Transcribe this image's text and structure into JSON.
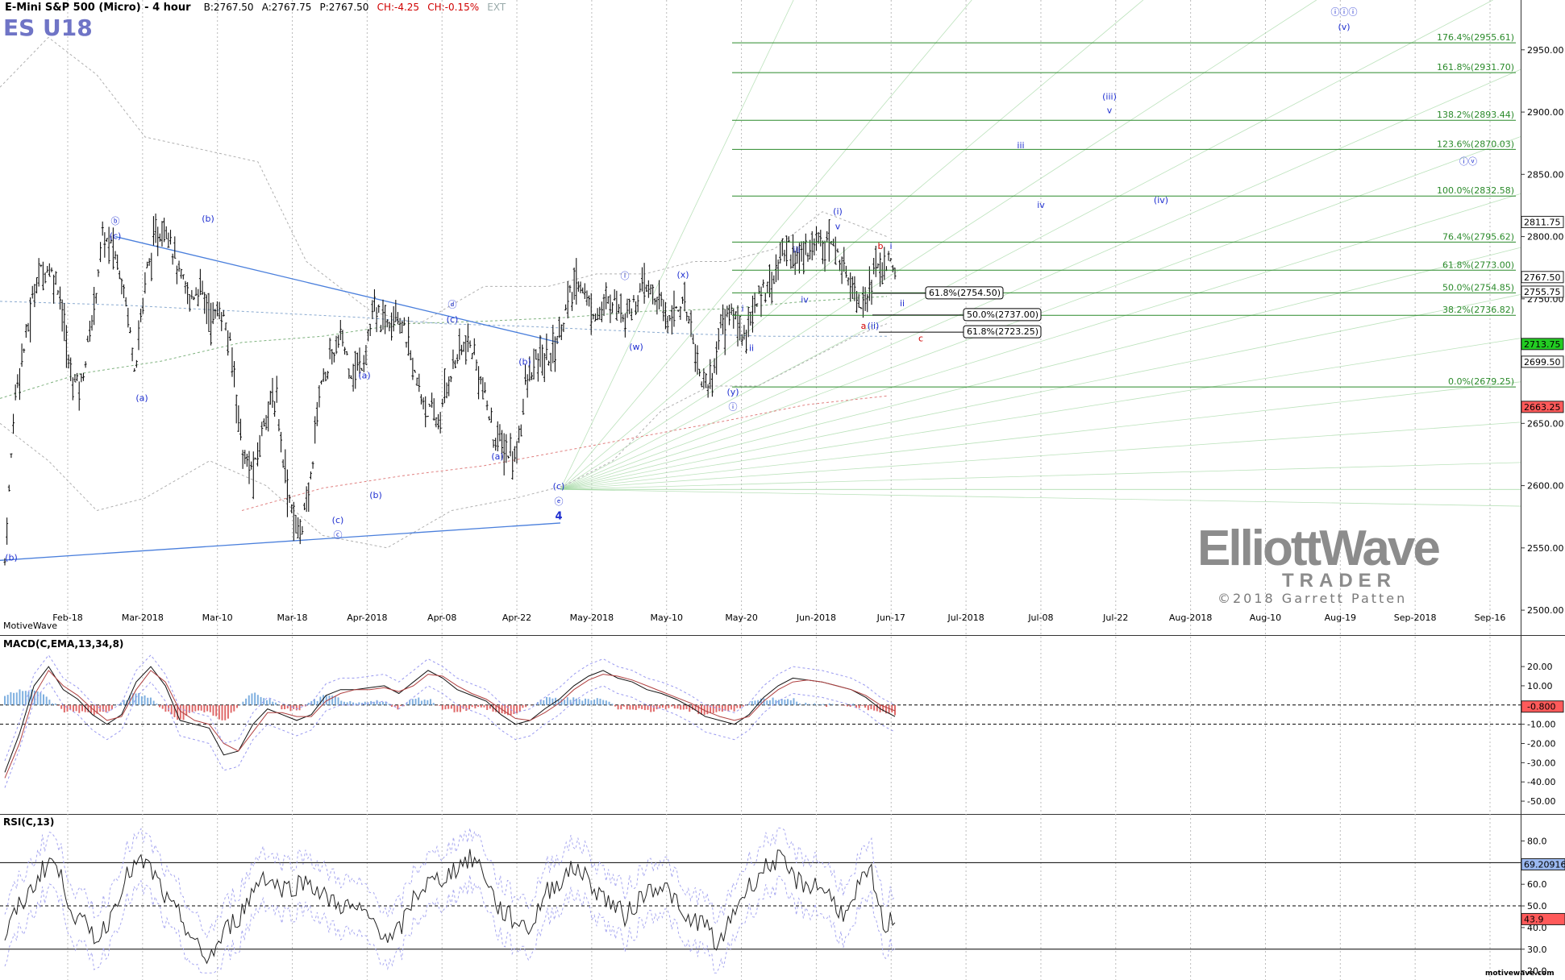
{
  "header": {
    "symbol": "E-Mini S&P 500 (Micro) - 4 hour",
    "bid": "B:2767.50",
    "ask": "A:2767.75",
    "price": "P:2767.50",
    "change": "CH:-4.25",
    "change_pct": "CH:-0.15%",
    "ext": "EXT",
    "ticker": "ES U18"
  },
  "watermark": "MotiveWave",
  "footer_brand": "motivewave.com",
  "logo": {
    "line1": "ElliottWave",
    "line2": "TRADER",
    "copyright": "©2018 Garrett Patten"
  },
  "colors": {
    "up": "#1f7a1f",
    "fib": "#2a8a2a",
    "wave": "#1f2fd0",
    "trend": "#4a7fdc",
    "bar": "#111111",
    "alt": "#d00000"
  },
  "chart_data": [
    {
      "type": "candlestick",
      "pane": "price",
      "ylim": [
        2480,
        2990
      ],
      "yticks": [
        "2950.00",
        "2900.00",
        "2850.00",
        "2800.00",
        "2750.00",
        "2700.00",
        "2650.00",
        "2600.00",
        "2550.00",
        "2500.00"
      ],
      "xticks": [
        "Feb-18",
        "Mar-2018",
        "Mar-10",
        "Mar-18",
        "Apr-2018",
        "Apr-08",
        "Apr-22",
        "May-2018",
        "May-10",
        "May-20",
        "Jun-2018",
        "Jun-17",
        "Jul-2018",
        "Jul-08",
        "Jul-22",
        "Aug-2018",
        "Aug-10",
        "Aug-19",
        "Sep-2018",
        "Sep-16"
      ],
      "price_tags": [
        {
          "label": "2811.75",
          "value": 2811.75,
          "kind": "outline"
        },
        {
          "label": "2767.50",
          "value": 2767.5,
          "kind": "outline"
        },
        {
          "label": "2755.75",
          "value": 2755.75,
          "kind": "outline"
        },
        {
          "label": "2713.75",
          "value": 2713.75,
          "kind": "green"
        },
        {
          "label": "2699.50",
          "value": 2699.5,
          "kind": "outline"
        },
        {
          "label": "2663.25",
          "value": 2663.25,
          "kind": "red"
        }
      ],
      "fib_levels": [
        {
          "label": "176.4%(2955.61)",
          "value": 2955.61
        },
        {
          "label": "161.8%(2931.70)",
          "value": 2931.7
        },
        {
          "label": "138.2%(2893.44)",
          "value": 2893.44
        },
        {
          "label": "123.6%(2870.03)",
          "value": 2870.03
        },
        {
          "label": "100.0%(2832.58)",
          "value": 2832.58
        },
        {
          "label": "76.4%(2795.62)",
          "value": 2795.62
        },
        {
          "label": "61.8%(2773.00)",
          "value": 2773.0
        },
        {
          "label": "50.0%(2754.85)",
          "value": 2754.85
        },
        {
          "label": "38.2%(2736.82)",
          "value": 2736.82
        },
        {
          "label": "0.0%(2679.25)",
          "value": 2679.25
        }
      ],
      "retrace_boxes": [
        {
          "label": "61.8%(2754.50)",
          "value": 2754.5
        },
        {
          "label": "50.0%(2737.00)",
          "value": 2737.0
        },
        {
          "label": "61.8%(2723.25)",
          "value": 2723.25
        }
      ],
      "close_path": [
        2540,
        2680,
        2720,
        2770,
        2775,
        2760,
        2690,
        2680,
        2730,
        2800,
        2790,
        2760,
        2695,
        2770,
        2800,
        2810,
        2770,
        2750,
        2760,
        2735,
        2740,
        2700,
        2620,
        2610,
        2660,
        2670,
        2600,
        2560,
        2590,
        2680,
        2700,
        2720,
        2690,
        2700,
        2740,
        2730,
        2745,
        2718,
        2680,
        2660,
        2650,
        2690,
        2710,
        2710,
        2680,
        2640,
        2630,
        2620,
        2680,
        2700,
        2700,
        2720,
        2750,
        2765,
        2740,
        2740,
        2750,
        2740,
        2745,
        2760,
        2750,
        2735,
        2745,
        2740,
        2690,
        2680,
        2730,
        2740,
        2720,
        2740,
        2760,
        2770,
        2795,
        2780,
        2790,
        2800,
        2796,
        2780,
        2765,
        2745,
        2770,
        2780,
        2770
      ],
      "wave_labels": [
        {
          "t": "(b)",
          "x": 14,
          "y": 2540,
          "c": "b"
        },
        {
          "t": "ⓑ",
          "x": 143,
          "y": 2810,
          "c": "b"
        },
        {
          "t": "(c)",
          "x": 143,
          "y": 2798,
          "c": "b"
        },
        {
          "t": "(a)",
          "x": 176,
          "y": 2668,
          "c": "b"
        },
        {
          "t": "(b)",
          "x": 258,
          "y": 2812,
          "c": "b"
        },
        {
          "t": "(a)",
          "x": 452,
          "y": 2686,
          "c": "b"
        },
        {
          "t": "(b)",
          "x": 466,
          "y": 2590,
          "c": "b"
        },
        {
          "t": "(c)",
          "x": 419,
          "y": 2570,
          "c": "b"
        },
        {
          "t": "ⓒ",
          "x": 419,
          "y": 2558,
          "c": "b"
        },
        {
          "t": "ⓓ",
          "x": 561,
          "y": 2743,
          "c": "b"
        },
        {
          "t": "(c)",
          "x": 561,
          "y": 2731,
          "c": "b"
        },
        {
          "t": "(a)",
          "x": 617,
          "y": 2621,
          "c": "b"
        },
        {
          "t": "(b)",
          "x": 651,
          "y": 2697,
          "c": "b"
        },
        {
          "t": "(c)",
          "x": 693,
          "y": 2597,
          "c": "b"
        },
        {
          "t": "ⓔ",
          "x": 693,
          "y": 2585,
          "c": "b"
        },
        {
          "t": "4",
          "x": 693,
          "y": 2573,
          "c": "b",
          "bold": true
        },
        {
          "t": "ⓘ",
          "x": 775,
          "y": 2766,
          "c": "b"
        },
        {
          "t": "(w)",
          "x": 789,
          "y": 2709,
          "c": "b"
        },
        {
          "t": "(x)",
          "x": 847,
          "y": 2767,
          "c": "b"
        },
        {
          "t": "(y)",
          "x": 909,
          "y": 2673,
          "c": "b"
        },
        {
          "t": "ⓘ",
          "x": 909,
          "y": 2661,
          "c": "b"
        },
        {
          "t": "i",
          "x": 921,
          "y": 2740,
          "c": "b"
        },
        {
          "t": "ii",
          "x": 932,
          "y": 2708,
          "c": "b"
        },
        {
          "t": "iii",
          "x": 988,
          "y": 2787,
          "c": "b"
        },
        {
          "t": "iv",
          "x": 998,
          "y": 2747,
          "c": "b"
        },
        {
          "t": "(i)",
          "x": 1039,
          "y": 2818,
          "c": "b"
        },
        {
          "t": "v",
          "x": 1039,
          "y": 2806,
          "c": "b"
        },
        {
          "t": "b",
          "x": 1092,
          "y": 2790,
          "c": "r"
        },
        {
          "t": "i",
          "x": 1105,
          "y": 2790,
          "c": "b"
        },
        {
          "t": "ii",
          "x": 1119,
          "y": 2744,
          "c": "b"
        },
        {
          "t": "a",
          "x": 1071,
          "y": 2726,
          "c": "r"
        },
        {
          "t": "(ii)",
          "x": 1083,
          "y": 2726,
          "c": "b"
        },
        {
          "t": "c",
          "x": 1142,
          "y": 2716,
          "c": "r"
        },
        {
          "t": "iii",
          "x": 1266,
          "y": 2871,
          "c": "b"
        },
        {
          "t": "iv",
          "x": 1291,
          "y": 2823,
          "c": "b"
        },
        {
          "t": "(iii)",
          "x": 1376,
          "y": 2910,
          "c": "b"
        },
        {
          "t": "v",
          "x": 1376,
          "y": 2899,
          "c": "b"
        },
        {
          "t": "(iv)",
          "x": 1440,
          "y": 2827,
          "c": "b"
        },
        {
          "t": "ⓘⓘⓘ",
          "x": 1667,
          "y": 2978,
          "c": "b"
        },
        {
          "t": "(v)",
          "x": 1667,
          "y": 2966,
          "c": "b"
        },
        {
          "t": "ⓘⓥ",
          "x": 1821,
          "y": 2858,
          "c": "b"
        }
      ]
    },
    {
      "type": "line",
      "pane": "macd",
      "title": "MACD(C,EMA,13,34,8)",
      "ylim": [
        -55,
        28
      ],
      "yticks": [
        "20.00",
        "10.00",
        "0.00",
        "-10.00",
        "-20.00",
        "-30.00",
        "-40.00",
        "-50.00"
      ],
      "tag": "-0.800",
      "series": [
        {
          "name": "MACD",
          "values": [
            -35,
            -15,
            10,
            20,
            8,
            3,
            -5,
            -10,
            -5,
            12,
            20,
            10,
            -8,
            -10,
            -12,
            -26,
            -24,
            -10,
            -2,
            -5,
            -8,
            -5,
            5,
            8,
            8,
            9,
            10,
            6,
            12,
            18,
            14,
            8,
            5,
            2,
            -5,
            -10,
            -8,
            -2,
            3,
            10,
            15,
            18,
            14,
            12,
            8,
            6,
            3,
            -1,
            -6,
            -8,
            -10,
            -5,
            4,
            10,
            14,
            13,
            12,
            10,
            8,
            4,
            -2,
            -6
          ]
        },
        {
          "name": "Signal",
          "values": [
            -38,
            -20,
            5,
            18,
            10,
            5,
            -2,
            -8,
            -6,
            8,
            18,
            12,
            -3,
            -8,
            -10,
            -20,
            -24,
            -14,
            -4,
            -4,
            -6,
            -6,
            2,
            6,
            8,
            8,
            9,
            7,
            10,
            16,
            15,
            10,
            6,
            3,
            -2,
            -7,
            -8,
            -4,
            1,
            8,
            13,
            16,
            15,
            13,
            10,
            7,
            4,
            1,
            -3,
            -6,
            -8,
            -6,
            2,
            8,
            12,
            13,
            12,
            10,
            8,
            5,
            0,
            -3
          ]
        }
      ]
    },
    {
      "type": "line",
      "pane": "rsi",
      "title": "RSI(C,13)",
      "ylim": [
        18,
        88
      ],
      "yticks": [
        "80.0",
        "70.0",
        "60.0",
        "50.0",
        "40.0",
        "30.0",
        "20.0"
      ],
      "tags": [
        "69.20916",
        "43.9"
      ],
      "series": [
        {
          "name": "RSI",
          "values": [
            35,
            48,
            55,
            65,
            72,
            60,
            45,
            40,
            35,
            45,
            60,
            68,
            70,
            62,
            50,
            45,
            35,
            25,
            30,
            40,
            45,
            55,
            65,
            60,
            58,
            60,
            62,
            55,
            52,
            50,
            48,
            45,
            40,
            33,
            42,
            55,
            60,
            62,
            65,
            70,
            72,
            65,
            50,
            45,
            42,
            40,
            55,
            60,
            65,
            68,
            60,
            55,
            50,
            45,
            52,
            58,
            60,
            55,
            42,
            44,
            40,
            30,
            45,
            55,
            62,
            68,
            72,
            65,
            60,
            60,
            58,
            50,
            45,
            60,
            65,
            40,
            45
          ]
        }
      ]
    }
  ]
}
